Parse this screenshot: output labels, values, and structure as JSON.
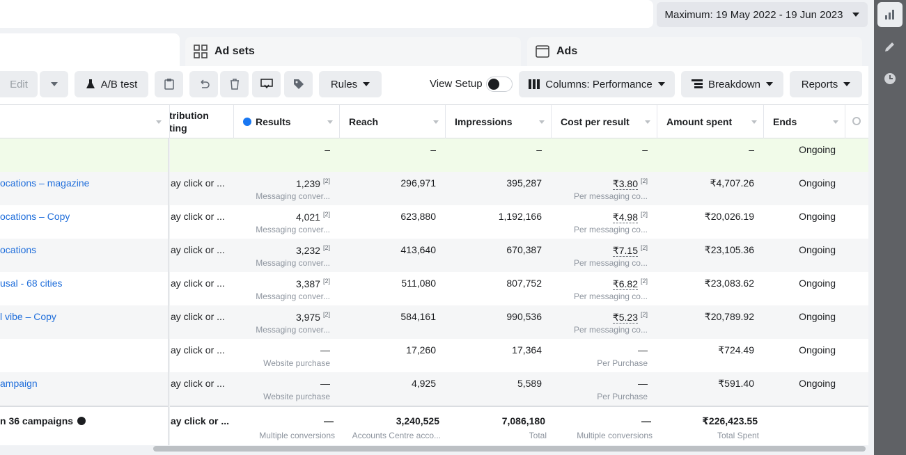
{
  "date_range": "Maximum: 19 May 2022 - 19 Jun 2023",
  "tabs": [
    "Ad sets",
    "Ads"
  ],
  "toolbar": {
    "edit": "Edit",
    "ab_test": "A/B test",
    "rules": "Rules",
    "view_setup": "View Setup",
    "columns": "Columns: Performance",
    "breakdown": "Breakdown",
    "reports": "Reports"
  },
  "table": {
    "attribution_header": [
      "tribution",
      "ting"
    ],
    "columns": [
      "Results",
      "Reach",
      "Impressions",
      "Cost per result",
      "Amount spent",
      "Ends"
    ],
    "rows": [
      {
        "results": "–",
        "reach": "–",
        "impressions": "–",
        "cost": "–",
        "amount": "–",
        "ends": "Ongoing"
      },
      {
        "name": "ocations – magazine",
        "attribution": "ay click or ...",
        "results": "1,239",
        "results_ref": "[2]",
        "results_note": "Messaging conver...",
        "reach": "296,971",
        "impressions": "395,287",
        "cost": "₹3.80",
        "cost_ref": "[2]",
        "cost_note": "Per messaging co...",
        "amount": "₹4,707.26",
        "ends": "Ongoing"
      },
      {
        "name": "ocations – Copy",
        "attribution": "ay click or ...",
        "results": "4,021",
        "results_ref": "[2]",
        "results_note": "Messaging conver...",
        "reach": "623,880",
        "impressions": "1,192,166",
        "cost": "₹4.98",
        "cost_ref": "[2]",
        "cost_note": "Per messaging co...",
        "amount": "₹20,026.19",
        "ends": "Ongoing"
      },
      {
        "name": "ocations",
        "attribution": "ay click or ...",
        "results": "3,232",
        "results_ref": "[2]",
        "results_note": "Messaging conver...",
        "reach": "413,640",
        "impressions": "670,387",
        "cost": "₹7.15",
        "cost_ref": "[2]",
        "cost_note": "Per messaging co...",
        "amount": "₹23,105.36",
        "ends": "Ongoing"
      },
      {
        "name": "usal - 68 cities",
        "attribution": "ay click or ...",
        "results": "3,387",
        "results_ref": "[2]",
        "results_note": "Messaging conver...",
        "reach": "511,080",
        "impressions": "807,752",
        "cost": "₹6.82",
        "cost_ref": "[2]",
        "cost_note": "Per messaging co...",
        "amount": "₹23,083.62",
        "ends": "Ongoing"
      },
      {
        "name": "l vibe – Copy",
        "attribution": "ay click or ...",
        "results": "3,975",
        "results_ref": "[2]",
        "results_note": "Messaging conver...",
        "reach": "584,161",
        "impressions": "990,536",
        "cost": "₹5.23",
        "cost_ref": "[2]",
        "cost_note": "Per messaging co...",
        "amount": "₹20,789.92",
        "ends": "Ongoing"
      },
      {
        "attribution": "ay click or ...",
        "results": "—",
        "results_note": "Website purchase",
        "reach": "17,260",
        "impressions": "17,364",
        "cost": "—",
        "cost_note": "Per Purchase",
        "amount": "₹724.49",
        "ends": "Ongoing"
      },
      {
        "name": "ampaign",
        "attribution": "ay click or ...",
        "results": "—",
        "results_note": "Website purchase",
        "reach": "4,925",
        "impressions": "5,589",
        "cost": "—",
        "cost_note": "Per Purchase",
        "amount": "₹591.40",
        "ends": "Ongoing"
      }
    ],
    "total": {
      "name": "n 36 campaigns",
      "attribution": "ay click or ...",
      "results": "—",
      "results_note": "Multiple conversions",
      "reach": "3,240,525",
      "reach_note": "Accounts Centre acco...",
      "impressions": "7,086,180",
      "impressions_note": "Total",
      "cost": "—",
      "cost_note": "Multiple conversions",
      "amount": "₹226,423.55",
      "amount_note": "Total Spent"
    }
  }
}
